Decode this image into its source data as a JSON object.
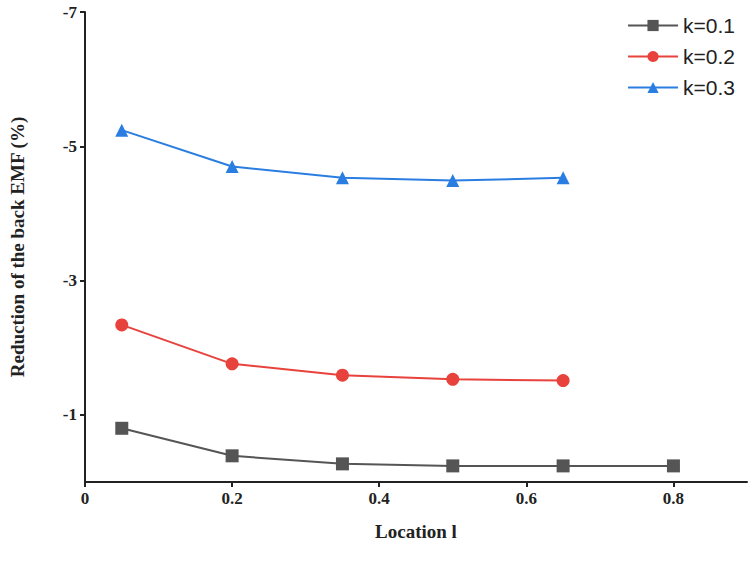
{
  "chart_data": {
    "type": "line",
    "x_label": "Location l",
    "y_label": "Reduction of the back EMF (%)",
    "xlim": [
      0,
      0.9
    ],
    "xticks": [
      0,
      0.2,
      0.4,
      0.6,
      0.8
    ],
    "ylim": [
      0,
      -7
    ],
    "yticks": [
      -7,
      -5,
      -3,
      -1
    ],
    "grid": false,
    "legend": "top-right",
    "series": [
      {
        "name": "k=0.1",
        "color": "#555555",
        "marker": "square",
        "line_style": "solid",
        "x": [
          0.05,
          0.2,
          0.35,
          0.5,
          0.65,
          0.8
        ],
        "values": [
          -0.8,
          -0.39,
          -0.27,
          -0.24,
          -0.24,
          -0.24
        ]
      },
      {
        "name": "k=0.2",
        "color": "#e8423c",
        "marker": "circle",
        "line_style": "solid",
        "x": [
          0.05,
          0.2,
          0.35,
          0.5,
          0.65
        ],
        "values": [
          -2.34,
          -1.76,
          -1.59,
          -1.53,
          -1.51
        ]
      },
      {
        "name": "k=0.3",
        "color": "#2a7de1",
        "marker": "triangle",
        "line_style": "solid",
        "x": [
          0.05,
          0.2,
          0.35,
          0.5,
          0.65
        ],
        "values": [
          -5.24,
          -4.7,
          -4.53,
          -4.49,
          -4.53
        ]
      }
    ]
  }
}
